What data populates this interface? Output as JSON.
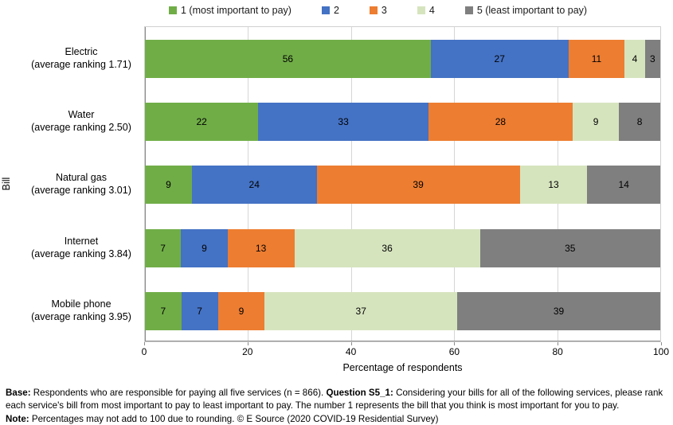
{
  "legend": {
    "items": [
      {
        "label": "1 (most important to pay)",
        "color": "#70AD47"
      },
      {
        "label": "2",
        "color": "#4472C4"
      },
      {
        "label": "3",
        "color": "#ED7D31"
      },
      {
        "label": "4",
        "color": "#D6E4BE"
      },
      {
        "label": "5 (least important to pay)",
        "color": "#7F7F7F"
      }
    ]
  },
  "chart_data": {
    "type": "bar",
    "orientation": "horizontal",
    "stacked": true,
    "grid": "vertical",
    "legend_position": "top",
    "title": "",
    "xlabel": "Percentage of respondents",
    "ylabel": "Bill",
    "xlim": [
      0,
      100
    ],
    "xticks": [
      0,
      20,
      40,
      60,
      80,
      100
    ],
    "categories": [
      {
        "label": "Electric",
        "sub": "(average ranking 1.71)"
      },
      {
        "label": "Water",
        "sub": "(average ranking 2.50)"
      },
      {
        "label": "Natural gas",
        "sub": "(average ranking 3.01)"
      },
      {
        "label": "Internet",
        "sub": "(average ranking 3.84)"
      },
      {
        "label": "Mobile phone",
        "sub": "(average ranking 3.95)"
      }
    ],
    "series": [
      {
        "name": "1 (most important to pay)",
        "color": "#70AD47",
        "values": [
          56,
          22,
          9,
          7,
          7
        ]
      },
      {
        "name": "2",
        "color": "#4472C4",
        "values": [
          27,
          33,
          24,
          9,
          7
        ]
      },
      {
        "name": "3",
        "color": "#ED7D31",
        "values": [
          11,
          28,
          39,
          13,
          9
        ]
      },
      {
        "name": "4",
        "color": "#D6E4BE",
        "values": [
          4,
          9,
          13,
          36,
          37
        ]
      },
      {
        "name": "5 (least important to pay)",
        "color": "#7F7F7F",
        "values": [
          3,
          8,
          14,
          35,
          39
        ]
      }
    ]
  },
  "footnote": {
    "base_label": "Base:",
    "base_text": " Respondents who are responsible for paying all five services (n = 866). ",
    "question_label": "Question S5_1:",
    "question_text": " Considering your bills for all of the following services, please rank each service's bill from most important to pay to least important to pay. The number 1 represents the bill that you think is most important for you to pay.",
    "note_label": "Note:",
    "note_text": " Percentages may not add to 100 due to rounding. © E Source (2020 COVID-19 Residential Survey)"
  }
}
